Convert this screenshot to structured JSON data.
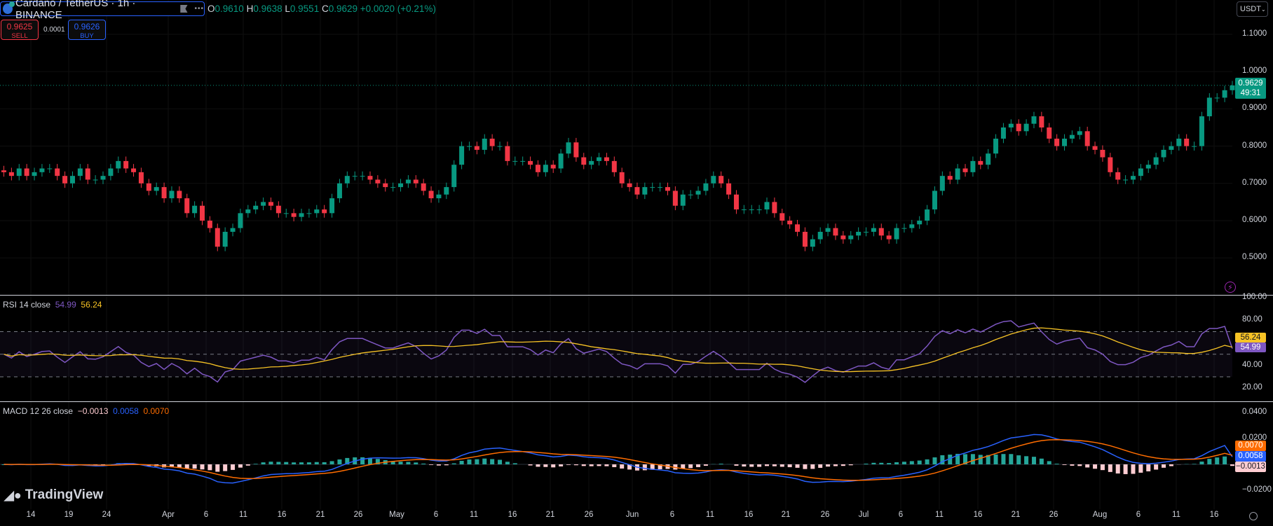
{
  "header": {
    "symbol_title": "Cardano / TetherUS · 1h · BINANCE",
    "more_label": "•••",
    "ohlc": {
      "o_label": "O",
      "o": "0.9610",
      "h_label": "H",
      "h": "0.9638",
      "l_label": "L",
      "l": "0.9551",
      "c_label": "C",
      "c": "0.9629",
      "change": "+0.0020 (+0.21%)"
    },
    "sell": {
      "price": "0.9625",
      "label": "SELL"
    },
    "spread": "0.0001",
    "buy": {
      "price": "0.9626",
      "label": "BUY"
    },
    "currency_button": "USDT"
  },
  "price_axis": {
    "ticks": [
      "1.1000",
      "1.0000",
      "0.9000",
      "0.8000",
      "0.7000",
      "0.6000",
      "0.5000"
    ],
    "last_price": "0.9629",
    "countdown": "49:31"
  },
  "rsi": {
    "legend": "RSI 14 close",
    "value": "54.99",
    "ma_value": "56.24",
    "ticks": [
      "100.00",
      "80.00",
      "40.00",
      "20.00"
    ],
    "bands": [
      70,
      50,
      30
    ]
  },
  "macd": {
    "legend": "MACD 12 26 close",
    "histogram": "−0.0013",
    "macd_value": "0.0058",
    "signal_value": "0.0070",
    "ticks": [
      "0.0400",
      "0.0200",
      "−0.0200"
    ]
  },
  "time_axis": {
    "labels": [
      "14",
      "19",
      "24",
      "Apr",
      "6",
      "11",
      "16",
      "21",
      "26",
      "May",
      "6",
      "11",
      "16",
      "21",
      "26",
      "Jun",
      "6",
      "11",
      "16",
      "21",
      "26",
      "Jul",
      "6",
      "11",
      "16",
      "21",
      "26",
      "Aug",
      "6",
      "11",
      "16"
    ]
  },
  "branding": "TradingView",
  "colors": {
    "up": "#089981",
    "down": "#f23645",
    "rsi": "#7e57c2",
    "rsi_ma": "#f7c325",
    "macd": "#2962ff",
    "signal": "#ff6d00",
    "accent": "#2962ff"
  },
  "chart_data": {
    "type": "candlestick",
    "title": "Cardano / TetherUS · 1h · BINANCE",
    "ylim": [
      0.45,
      1.12
    ],
    "grid": true,
    "x": [
      "Mar 10",
      "Mar 11",
      "Mar 12",
      "Mar 13",
      "Mar 14",
      "Mar 15",
      "Mar 16",
      "Mar 17",
      "Mar 18",
      "Mar 19",
      "Mar 20",
      "Mar 21",
      "Mar 22",
      "Mar 23",
      "Mar 24",
      "Mar 25",
      "Mar 26",
      "Mar 27",
      "Mar 28",
      "Mar 29",
      "Mar 30",
      "Mar 31",
      "Apr 1",
      "Apr 2",
      "Apr 3",
      "Apr 4",
      "Apr 5",
      "Apr 6",
      "Apr 7",
      "Apr 8",
      "Apr 9",
      "Apr 10",
      "Apr 11",
      "Apr 12",
      "Apr 13",
      "Apr 14",
      "Apr 15",
      "Apr 16",
      "Apr 17",
      "Apr 18",
      "Apr 19",
      "Apr 20",
      "Apr 21",
      "Apr 22",
      "Apr 23",
      "Apr 24",
      "Apr 25",
      "Apr 26",
      "Apr 27",
      "Apr 28",
      "Apr 29",
      "Apr 30",
      "May 1",
      "May 2",
      "May 3",
      "May 4",
      "May 5",
      "May 6",
      "May 7",
      "May 8",
      "May 9",
      "May 10",
      "May 11",
      "May 12",
      "May 13",
      "May 14",
      "May 15",
      "May 16",
      "May 17",
      "May 18",
      "May 19",
      "May 20",
      "May 21",
      "May 22",
      "May 23",
      "May 24",
      "May 25",
      "May 26",
      "May 27",
      "May 28",
      "May 29",
      "May 30",
      "May 31",
      "Jun 1",
      "Jun 2",
      "Jun 3",
      "Jun 4",
      "Jun 5",
      "Jun 6",
      "Jun 7",
      "Jun 8",
      "Jun 9",
      "Jun 10",
      "Jun 11",
      "Jun 12",
      "Jun 13",
      "Jun 14",
      "Jun 15",
      "Jun 16",
      "Jun 17",
      "Jun 18",
      "Jun 19",
      "Jun 20",
      "Jun 21",
      "Jun 22",
      "Jun 23",
      "Jun 24",
      "Jun 25",
      "Jun 26",
      "Jun 27",
      "Jun 28",
      "Jun 29",
      "Jun 30",
      "Jul 1",
      "Jul 2",
      "Jul 3",
      "Jul 4",
      "Jul 5",
      "Jul 6",
      "Jul 7",
      "Jul 8",
      "Jul 9",
      "Jul 10",
      "Jul 11",
      "Jul 12",
      "Jul 13",
      "Jul 14",
      "Jul 15",
      "Jul 16",
      "Jul 17",
      "Jul 18",
      "Jul 19",
      "Jul 20",
      "Jul 21",
      "Jul 22",
      "Jul 23",
      "Jul 24",
      "Jul 25",
      "Jul 26",
      "Jul 27",
      "Jul 28",
      "Jul 29",
      "Jul 30",
      "Jul 31",
      "Aug 1",
      "Aug 2",
      "Aug 3",
      "Aug 4",
      "Aug 5",
      "Aug 6",
      "Aug 7",
      "Aug 8",
      "Aug 9",
      "Aug 10",
      "Aug 11",
      "Aug 12",
      "Aug 13",
      "Aug 14",
      "Aug 15",
      "Aug 16",
      "Aug 17",
      "Aug 18"
    ],
    "close": [
      0.73,
      0.72,
      0.74,
      0.72,
      0.73,
      0.74,
      0.74,
      0.72,
      0.7,
      0.72,
      0.74,
      0.71,
      0.71,
      0.72,
      0.74,
      0.76,
      0.74,
      0.73,
      0.7,
      0.68,
      0.69,
      0.66,
      0.68,
      0.66,
      0.62,
      0.64,
      0.6,
      0.58,
      0.53,
      0.57,
      0.58,
      0.62,
      0.63,
      0.64,
      0.65,
      0.64,
      0.62,
      0.62,
      0.61,
      0.62,
      0.62,
      0.63,
      0.62,
      0.66,
      0.7,
      0.72,
      0.72,
      0.72,
      0.71,
      0.7,
      0.69,
      0.69,
      0.7,
      0.71,
      0.7,
      0.68,
      0.66,
      0.67,
      0.69,
      0.75,
      0.8,
      0.8,
      0.79,
      0.82,
      0.8,
      0.8,
      0.76,
      0.76,
      0.76,
      0.75,
      0.73,
      0.75,
      0.74,
      0.78,
      0.81,
      0.77,
      0.75,
      0.76,
      0.77,
      0.76,
      0.73,
      0.7,
      0.69,
      0.67,
      0.69,
      0.69,
      0.69,
      0.68,
      0.64,
      0.67,
      0.67,
      0.68,
      0.7,
      0.72,
      0.7,
      0.67,
      0.63,
      0.63,
      0.63,
      0.63,
      0.65,
      0.62,
      0.6,
      0.59,
      0.57,
      0.53,
      0.55,
      0.57,
      0.58,
      0.56,
      0.55,
      0.56,
      0.57,
      0.57,
      0.58,
      0.56,
      0.55,
      0.58,
      0.58,
      0.59,
      0.6,
      0.63,
      0.68,
      0.72,
      0.71,
      0.74,
      0.73,
      0.76,
      0.75,
      0.78,
      0.82,
      0.85,
      0.86,
      0.84,
      0.86,
      0.88,
      0.85,
      0.82,
      0.8,
      0.82,
      0.83,
      0.84,
      0.8,
      0.79,
      0.77,
      0.73,
      0.71,
      0.71,
      0.72,
      0.74,
      0.75,
      0.77,
      0.79,
      0.8,
      0.82,
      0.8,
      0.8,
      0.88,
      0.93,
      0.93,
      0.95,
      0.9629
    ]
  }
}
